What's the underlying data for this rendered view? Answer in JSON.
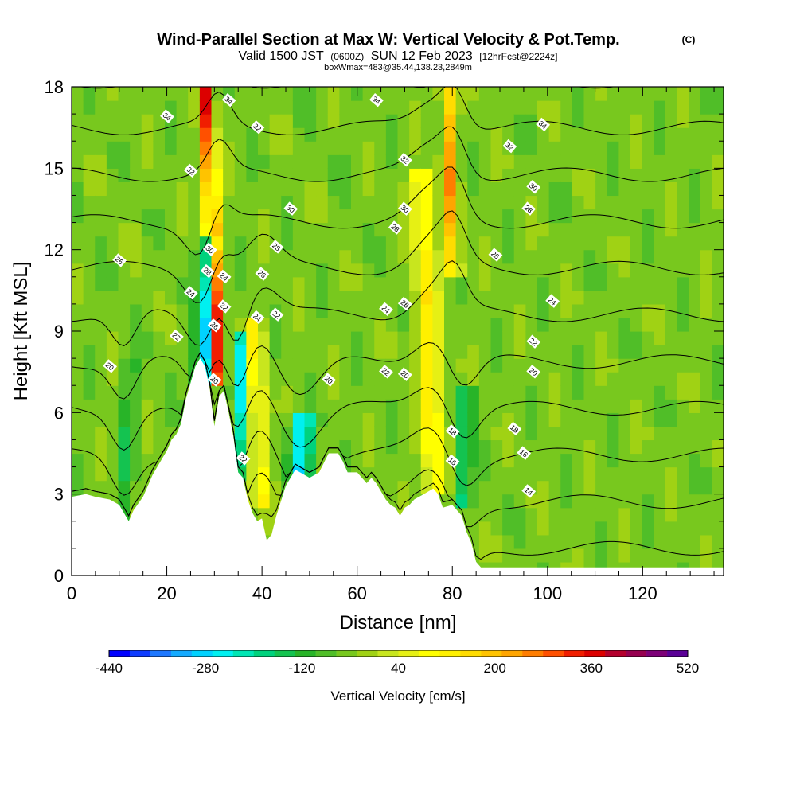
{
  "chart_data": {
    "type": "heatmap",
    "title": {
      "main": "Wind-Parallel Section at Max W: Vertical Velocity & Pot.Temp.",
      "copyright": "(C)",
      "valid_pre": "Valid 1500 JST",
      "valid_utc": "(0600Z)",
      "valid_post": "SUN 12 Feb 2023",
      "forecast": "[12hrFcst@2224z]",
      "box": "boxWmax=483@35.44,138.23,2849m"
    },
    "xlabel": "Distance [nm]",
    "ylabel": "Height [Kft MSL]",
    "xlim": [
      0,
      137
    ],
    "ylim": [
      0,
      18
    ],
    "xticks": [
      "0",
      "20",
      "40",
      "60",
      "80",
      "100",
      "120"
    ],
    "yticks": [
      "0",
      "3",
      "6",
      "9",
      "12",
      "15",
      "18"
    ],
    "x_tick_values": [
      0,
      20,
      40,
      60,
      80,
      100,
      120
    ],
    "y_tick_values": [
      0,
      3,
      6,
      9,
      12,
      15,
      18
    ],
    "grid": false,
    "colorbar": {
      "label": "Vertical Velocity [cm/s]",
      "min": -440,
      "max": 520,
      "step": 40,
      "tick_labels": [
        "-440",
        "-280",
        "-120",
        "40",
        "200",
        "360",
        "520"
      ],
      "tick_values": [
        -440,
        -280,
        -120,
        40,
        200,
        360,
        520
      ],
      "colors": [
        "#0000ff",
        "#0f3cff",
        "#1e78ff",
        "#14aaff",
        "#00d2ff",
        "#00f0f0",
        "#00e6b4",
        "#00d27d",
        "#14c350",
        "#28b428",
        "#50be28",
        "#78c81e",
        "#a0d214",
        "#c8e61e",
        "#e6f014",
        "#ffff00",
        "#fff000",
        "#ffdc00",
        "#ffc300",
        "#ffa500",
        "#ff7d00",
        "#ff5000",
        "#f01e00",
        "#dc0000",
        "#b4002d",
        "#960050",
        "#7d0078",
        "#5a0096"
      ]
    },
    "velocity_features": [
      {
        "kind": "updraft",
        "x_center": 31.0,
        "half_width": 1.4,
        "z_from": 7.0,
        "z_to": 18.0,
        "w": 480
      },
      {
        "kind": "updraft",
        "x_center": 40.0,
        "half_width": 2.0,
        "z_from": 2.5,
        "z_to": 9.5,
        "w": 180
      },
      {
        "kind": "updraft",
        "x_center": 76.5,
        "half_width": 2.5,
        "z_from": 3.0,
        "z_to": 15.0,
        "w": 200
      },
      {
        "kind": "updraft",
        "x_center": 80.5,
        "half_width": 1.4,
        "z_from": 11.0,
        "z_to": 18.0,
        "w": 320
      },
      {
        "kind": "downdraft",
        "x_center": 27.5,
        "half_width": 1.8,
        "z_from": 7.0,
        "z_to": 12.5,
        "w": -300
      },
      {
        "kind": "downdraft",
        "x_center": 34.5,
        "half_width": 1.3,
        "z_from": 3.5,
        "z_to": 9.0,
        "w": -260
      },
      {
        "kind": "downdraft",
        "x_center": 48.0,
        "half_width": 2.5,
        "z_from": 3.5,
        "z_to": 6.0,
        "w": -260
      },
      {
        "kind": "downdraft",
        "x_center": 82.0,
        "half_width": 1.8,
        "z_from": 2.5,
        "z_to": 7.0,
        "w": -160
      },
      {
        "kind": "downdraft",
        "x_center": 11.0,
        "half_width": 1.5,
        "z_from": 2.0,
        "z_to": 8.0,
        "w": -100
      }
    ],
    "terrain_height": {
      "x": [
        0,
        3,
        5,
        8,
        10,
        12,
        13,
        15,
        17,
        19,
        20,
        21,
        22,
        23,
        24,
        25,
        26,
        27,
        28,
        29,
        30,
        31,
        32,
        33,
        34,
        35,
        36,
        37,
        38,
        39,
        40,
        41,
        42,
        43,
        45,
        47,
        48,
        50,
        52,
        54,
        56,
        57,
        58,
        60,
        62,
        63,
        64,
        66,
        67,
        68,
        69,
        70,
        71,
        72,
        74,
        76,
        77,
        78,
        80,
        82,
        83,
        84,
        85,
        86,
        137
      ],
      "kft": [
        2.9,
        3.0,
        2.9,
        2.8,
        2.6,
        2.0,
        2.4,
        2.9,
        3.7,
        4.3,
        4.6,
        5.0,
        5.2,
        5.6,
        6.5,
        7.1,
        7.7,
        8.0,
        7.7,
        6.9,
        5.5,
        6.6,
        6.8,
        6.0,
        5.1,
        3.8,
        3.6,
        2.8,
        2.3,
        2.0,
        2.1,
        1.3,
        1.5,
        2.2,
        3.3,
        3.9,
        3.8,
        3.6,
        3.8,
        4.5,
        4.5,
        4.2,
        3.8,
        3.8,
        3.4,
        3.6,
        3.4,
        2.8,
        2.6,
        2.5,
        2.2,
        2.5,
        2.6,
        2.8,
        3.0,
        3.2,
        3.0,
        2.5,
        2.6,
        2.2,
        1.6,
        1.2,
        0.5,
        0.3,
        0.3
      ]
    },
    "theta_contours_c": [
      14,
      16,
      18,
      20,
      22,
      24,
      26,
      28,
      30,
      32,
      34
    ],
    "theta_labels": [
      {
        "text": "34",
        "x": 20,
        "z": 16.9
      },
      {
        "text": "34",
        "x": 33,
        "z": 17.5
      },
      {
        "text": "34",
        "x": 64,
        "z": 17.5
      },
      {
        "text": "34",
        "x": 99,
        "z": 16.6
      },
      {
        "text": "32",
        "x": 25,
        "z": 14.9
      },
      {
        "text": "32",
        "x": 39,
        "z": 16.5
      },
      {
        "text": "32",
        "x": 70,
        "z": 15.3
      },
      {
        "text": "32",
        "x": 92,
        "z": 15.8
      },
      {
        "text": "30",
        "x": 29,
        "z": 12.0
      },
      {
        "text": "30",
        "x": 46,
        "z": 13.5
      },
      {
        "text": "30",
        "x": 70,
        "z": 13.5
      },
      {
        "text": "30",
        "x": 97,
        "z": 14.3
      },
      {
        "text": "28",
        "x": 28.5,
        "z": 11.2
      },
      {
        "text": "28",
        "x": 43,
        "z": 12.1
      },
      {
        "text": "28",
        "x": 68,
        "z": 12.8
      },
      {
        "text": "28",
        "x": 96,
        "z": 13.5
      },
      {
        "text": "26",
        "x": 10,
        "z": 11.6
      },
      {
        "text": "26",
        "x": 40,
        "z": 11.1
      },
      {
        "text": "26",
        "x": 70,
        "z": 10.0
      },
      {
        "text": "26",
        "x": 89,
        "z": 11.8
      },
      {
        "text": "26",
        "x": 30,
        "z": 9.2
      },
      {
        "text": "24",
        "x": 25,
        "z": 10.4
      },
      {
        "text": "24",
        "x": 32,
        "z": 11.0
      },
      {
        "text": "24",
        "x": 39,
        "z": 9.5
      },
      {
        "text": "24",
        "x": 66,
        "z": 9.8
      },
      {
        "text": "24",
        "x": 101,
        "z": 10.1
      },
      {
        "text": "22",
        "x": 22,
        "z": 8.8
      },
      {
        "text": "22",
        "x": 32,
        "z": 9.9
      },
      {
        "text": "22",
        "x": 43,
        "z": 9.6
      },
      {
        "text": "22",
        "x": 66,
        "z": 7.5
      },
      {
        "text": "22",
        "x": 97,
        "z": 8.6
      },
      {
        "text": "20",
        "x": 8,
        "z": 7.7
      },
      {
        "text": "20",
        "x": 30,
        "z": 7.2
      },
      {
        "text": "20",
        "x": 54,
        "z": 7.2
      },
      {
        "text": "20",
        "x": 70,
        "z": 7.4
      },
      {
        "text": "20",
        "x": 97,
        "z": 7.5
      },
      {
        "text": "22",
        "x": 36,
        "z": 4.3
      },
      {
        "text": "18",
        "x": 80,
        "z": 5.3
      },
      {
        "text": "16",
        "x": 80,
        "z": 4.2
      },
      {
        "text": "18",
        "x": 93,
        "z": 5.4
      },
      {
        "text": "16",
        "x": 95,
        "z": 4.5
      },
      {
        "text": "14",
        "x": 96,
        "z": 3.1
      }
    ]
  }
}
